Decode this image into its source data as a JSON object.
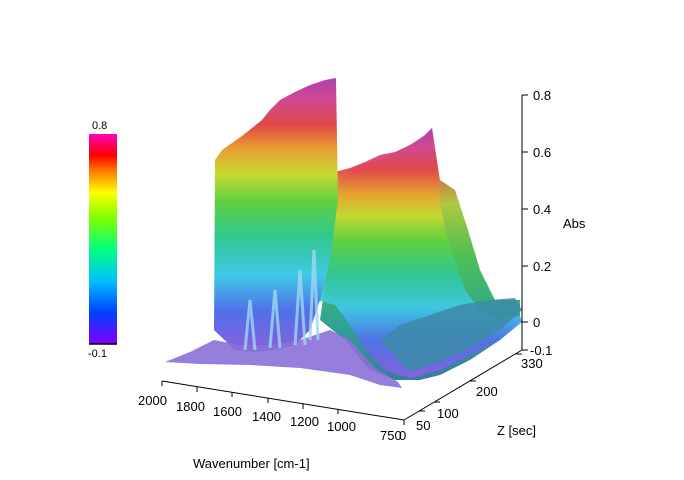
{
  "chart_data": {
    "type": "3d-surface",
    "title": "",
    "xlabel": "Wavenumber [cm-1]",
    "ylabel": "Z [sec]",
    "zlabel": "Abs",
    "x_ticks": [
      "2000",
      "1800",
      "1600",
      "1400",
      "1200",
      "1000",
      "750"
    ],
    "y_ticks": [
      "0",
      "50",
      "100",
      "200",
      "330"
    ],
    "z_ticks": [
      "-0.1",
      "0",
      "0.2",
      "0.4",
      "0.6",
      "0.8"
    ],
    "colorbar": {
      "max_label": "0.8",
      "min_label": "-0.1"
    },
    "x_range": [
      2000,
      750
    ],
    "y_range": [
      0,
      330
    ],
    "z_range": [
      -0.1,
      0.8
    ],
    "spectra": [
      {
        "wavenumber": 1740,
        "peak_abs": 0.78
      },
      {
        "wavenumber": 1300,
        "peak_abs": 0.63
      }
    ],
    "colormap": [
      "#8000ff",
      "#0040ff",
      "#00c0ff",
      "#00ff80",
      "#80ff00",
      "#ffff00",
      "#ff8000",
      "#ff0000",
      "#ff00c0"
    ]
  }
}
